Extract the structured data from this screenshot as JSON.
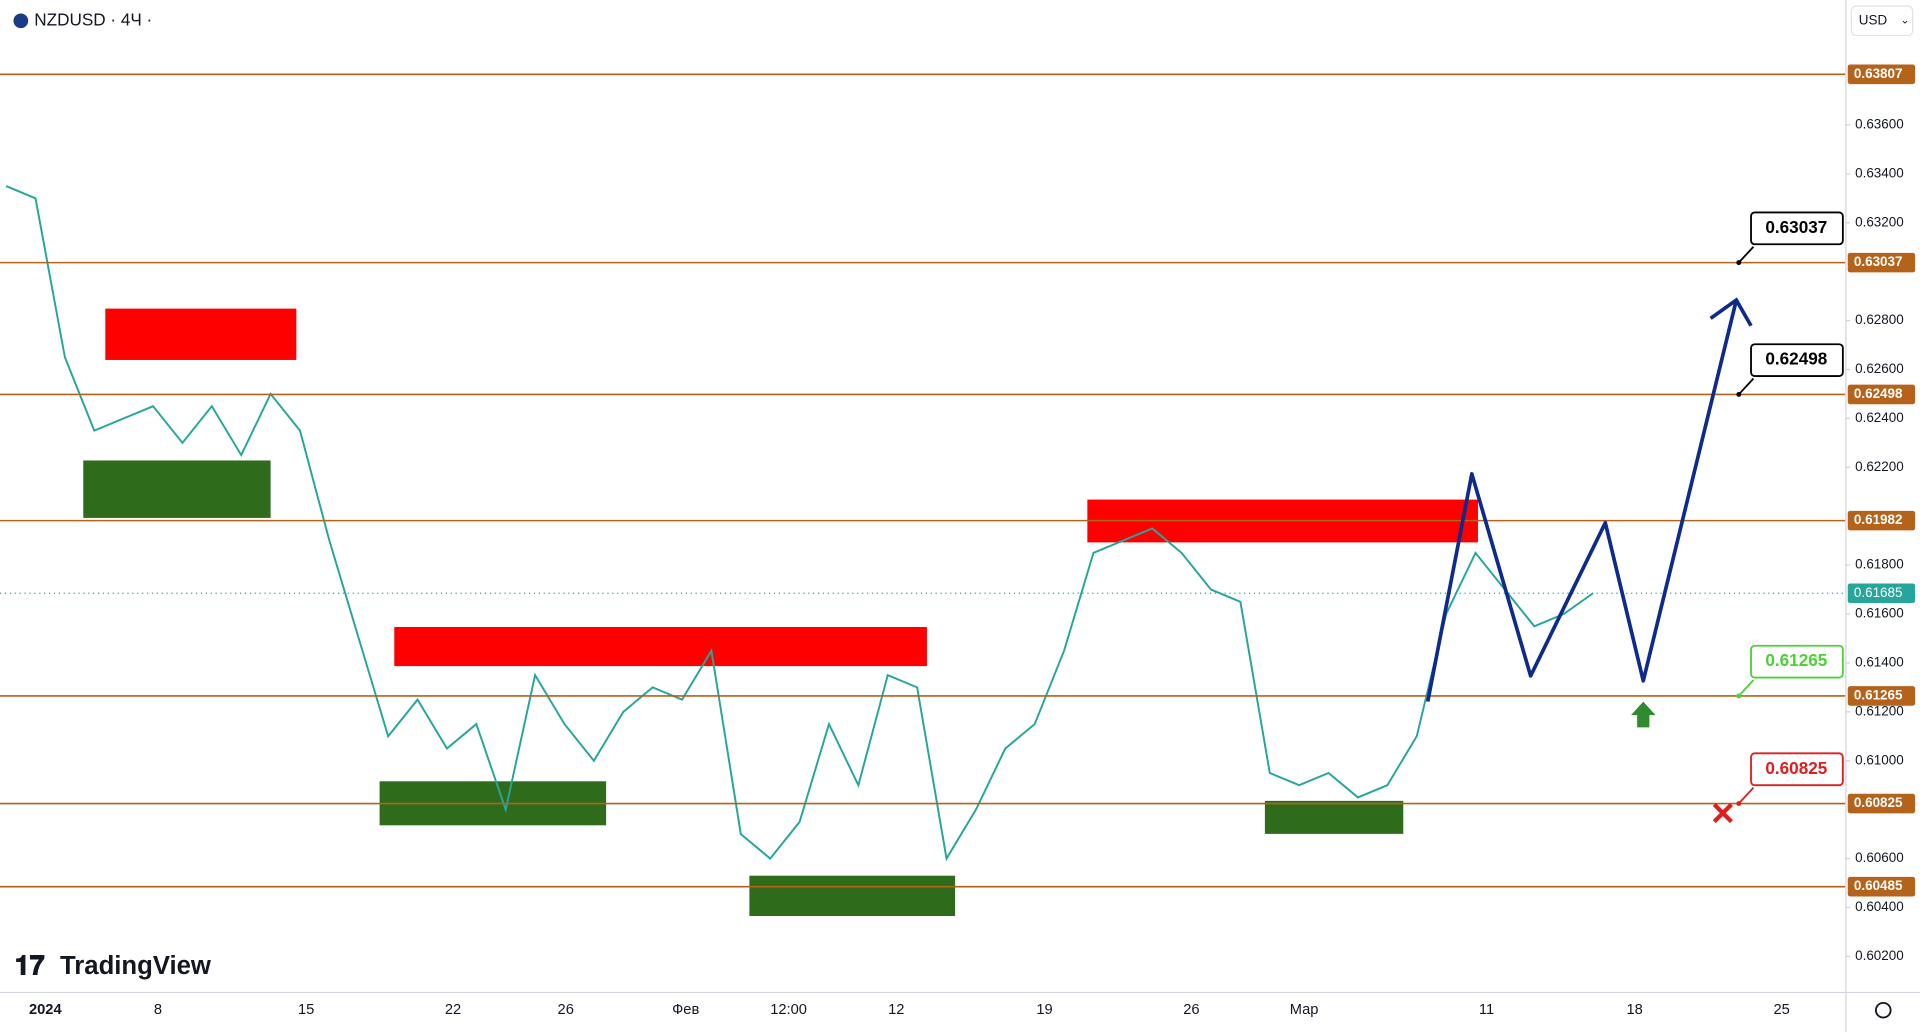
{
  "header": {
    "symbol": "NZDUSD · 4Ч ·",
    "currency": "USD",
    "brand": "TradingView"
  },
  "chart_data": {
    "type": "line",
    "x_labels": [
      "2024",
      "8",
      "15",
      "22",
      "26",
      "Фев",
      "12:00",
      "12",
      "19",
      "26",
      "Мар",
      "11",
      "18",
      "25"
    ],
    "values": [
      0.6335,
      0.633,
      0.6265,
      0.6235,
      0.624,
      0.6245,
      0.623,
      0.6245,
      0.6225,
      0.625,
      0.6235,
      0.619,
      0.615,
      0.611,
      0.6125,
      0.6105,
      0.6115,
      0.608,
      0.6135,
      0.6115,
      0.61,
      0.612,
      0.613,
      0.6125,
      0.6145,
      0.607,
      0.606,
      0.6075,
      0.6115,
      0.609,
      0.6135,
      0.613,
      0.606,
      0.608,
      0.6105,
      0.6115,
      0.6145,
      0.6185,
      0.619,
      0.6195,
      0.6185,
      0.617,
      0.6165,
      0.6095,
      0.609,
      0.6095,
      0.6085,
      0.609,
      0.611,
      0.616,
      0.6185,
      0.617,
      0.6155,
      0.616,
      0.61685
    ],
    "color": "#26a69a",
    "ylim": [
      0.60055,
      0.64111
    ],
    "yticks": [
      {
        "value": 0.636,
        "label": "0.63600"
      },
      {
        "value": 0.634,
        "label": "0.63400"
      },
      {
        "value": 0.632,
        "label": "0.63200"
      },
      {
        "value": 0.628,
        "label": "0.62800"
      },
      {
        "value": 0.626,
        "label": "0.62600"
      },
      {
        "value": 0.624,
        "label": "0.62400"
      },
      {
        "value": 0.622,
        "label": "0.62200"
      },
      {
        "value": 0.618,
        "label": "0.61800"
      },
      {
        "value": 0.616,
        "label": "0.61600"
      },
      {
        "value": 0.614,
        "label": "0.61400"
      },
      {
        "value": 0.612,
        "label": "0.61200"
      },
      {
        "value": 0.61,
        "label": "0.61000"
      },
      {
        "value": 0.606,
        "label": "0.60600"
      },
      {
        "value": 0.604,
        "label": "0.60400"
      },
      {
        "value": 0.602,
        "label": "0.60200"
      }
    ],
    "levels": [
      0.63807,
      0.63037,
      0.62498,
      0.61982,
      0.61265,
      0.60825,
      0.60485
    ],
    "level_color": "#b5621a",
    "last_price": 0.61685,
    "supply_zones": [
      {
        "top": 0.62849,
        "bottom": 0.62639
      },
      {
        "top": 0.61547,
        "bottom": 0.61387
      },
      {
        "top": 0.62068,
        "bottom": 0.61893
      }
    ],
    "demand_zones": [
      {
        "top": 0.62228,
        "bottom": 0.61993
      },
      {
        "top": 0.60916,
        "bottom": 0.60736
      },
      {
        "top": 0.6053,
        "bottom": 0.60365
      },
      {
        "top": 0.60836,
        "bottom": 0.60701
      }
    ],
    "supply_color": "#ff0000",
    "demand_color": "#2e6b1b",
    "projection": [
      0.61242,
      0.62173,
      0.61347,
      0.61973,
      0.61327,
      0.62884
    ],
    "projection_color": "#0d2a8c"
  }
}
